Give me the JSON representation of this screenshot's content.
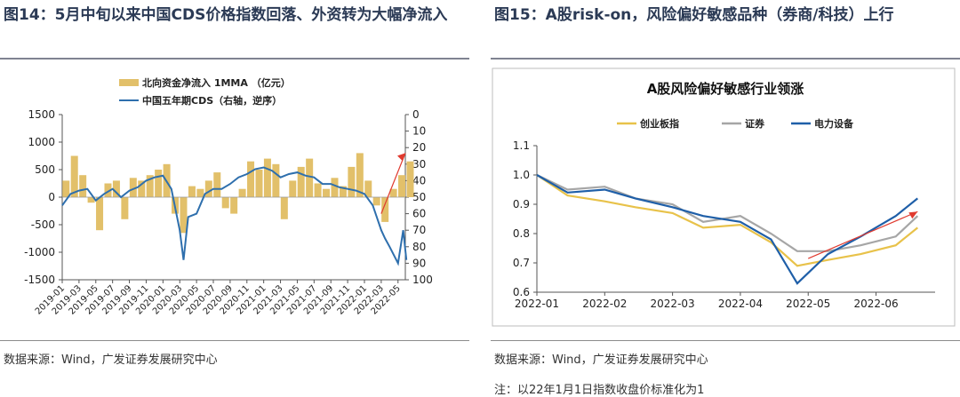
{
  "left": {
    "figure_title": "图14：5月中旬以来中国CDS价格指数回落、外资转为大幅净流入",
    "source": "数据来源：Wind，广发证券发展研究中心"
  },
  "right": {
    "figure_title": "图15：A股risk-on，风险偏好敏感品种（券商/科技）上行",
    "source": "数据来源：Wind，广发证券发展研究中心",
    "note": "注：以22年1月1日指数收盘价标准化为1"
  },
  "chart_data": [
    {
      "type": "bar",
      "legend": "top-center",
      "xlim": [
        "2019-01",
        "2022-05"
      ],
      "x_tick_labels": [
        "2019-01",
        "2019-03",
        "2019-05",
        "2019-07",
        "2019-09",
        "2019-11",
        "2020-01",
        "2020-03",
        "2020-05",
        "2020-07",
        "2020-09",
        "2020-11",
        "2021-01",
        "2021-03",
        "2021-05",
        "2021-07",
        "2021-09",
        "2021-11",
        "2022-01",
        "2022-03",
        "2022-05"
      ],
      "ylim": [
        -1500,
        1500
      ],
      "y_ticks": [
        1500,
        1000,
        500,
        0,
        -500,
        -1000,
        -1500
      ],
      "y2lim": [
        0,
        100
      ],
      "y2_inverted": true,
      "y2_ticks": [
        0,
        10,
        20,
        30,
        40,
        50,
        60,
        70,
        80,
        90,
        100
      ],
      "series": [
        {
          "name": "北向资金净流入 1MMA （亿元）",
          "type": "bar",
          "color": "#e2c06a",
          "axis": "left",
          "x": [
            "2019-01-15",
            "2019-02-15",
            "2019-03-15",
            "2019-04-15",
            "2019-05-15",
            "2019-06-15",
            "2019-07-15",
            "2019-08-15",
            "2019-09-15",
            "2019-10-15",
            "2019-11-15",
            "2019-12-15",
            "2020-01-15",
            "2020-02-15",
            "2020-03-15",
            "2020-04-15",
            "2020-05-15",
            "2020-06-15",
            "2020-07-15",
            "2020-08-15",
            "2020-09-15",
            "2020-10-15",
            "2020-11-15",
            "2020-12-15",
            "2021-01-15",
            "2021-02-15",
            "2021-03-15",
            "2021-04-15",
            "2021-05-15",
            "2021-06-15",
            "2021-07-15",
            "2021-08-15",
            "2021-09-15",
            "2021-10-15",
            "2021-11-15",
            "2021-12-15",
            "2022-01-15",
            "2022-02-15",
            "2022-03-15",
            "2022-04-15",
            "2022-05-15",
            "2022-06-15"
          ],
          "values": [
            300,
            750,
            400,
            -100,
            -600,
            250,
            300,
            -400,
            350,
            300,
            400,
            500,
            600,
            -300,
            -650,
            200,
            150,
            300,
            450,
            -200,
            -300,
            150,
            650,
            500,
            700,
            600,
            -400,
            300,
            550,
            700,
            250,
            150,
            350,
            200,
            550,
            800,
            300,
            -150,
            -450,
            150,
            400,
            650
          ]
        },
        {
          "name": "中国五年期CDS（右轴，逆序）",
          "type": "line",
          "color": "#2e6fad",
          "axis": "right",
          "x": [
            "2019-01-01",
            "2019-02-01",
            "2019-03-01",
            "2019-04-01",
            "2019-05-01",
            "2019-06-01",
            "2019-07-01",
            "2019-08-01",
            "2019-09-01",
            "2019-10-01",
            "2019-11-01",
            "2019-12-01",
            "2020-01-01",
            "2020-02-01",
            "2020-03-01",
            "2020-03-15",
            "2020-04-01",
            "2020-05-01",
            "2020-06-01",
            "2020-07-01",
            "2020-08-01",
            "2020-09-01",
            "2020-10-01",
            "2020-11-01",
            "2020-12-01",
            "2021-01-01",
            "2021-02-01",
            "2021-03-01",
            "2021-04-01",
            "2021-05-01",
            "2021-06-01",
            "2021-07-01",
            "2021-08-01",
            "2021-09-01",
            "2021-10-01",
            "2021-11-01",
            "2021-12-01",
            "2022-01-01",
            "2022-02-01",
            "2022-03-01",
            "2022-03-15",
            "2022-04-01",
            "2022-05-01",
            "2022-05-20",
            "2022-06-01"
          ],
          "values": [
            55,
            48,
            46,
            45,
            52,
            48,
            45,
            50,
            46,
            44,
            40,
            38,
            37,
            45,
            70,
            88,
            62,
            60,
            48,
            45,
            45,
            42,
            38,
            36,
            33,
            32,
            34,
            38,
            36,
            35,
            37,
            38,
            42,
            42,
            44,
            45,
            46,
            48,
            55,
            70,
            75,
            80,
            90,
            70,
            88
          ]
        }
      ]
    },
    {
      "type": "line",
      "title": "A股风险偏好敏感行业领涨",
      "legend": "top-center",
      "xlim": [
        "2022-01",
        "2022-06"
      ],
      "x_tick_labels": [
        "2022-01",
        "2022-02",
        "2022-03",
        "2022-04",
        "2022-05",
        "2022-06"
      ],
      "ylim": [
        0.6,
        1.1
      ],
      "y_ticks": [
        1.1,
        1.0,
        0.9,
        0.8,
        0.7,
        0.6
      ],
      "series": [
        {
          "name": "创业板指",
          "color": "#e8c24a",
          "x": [
            "2022-01-01",
            "2022-01-15",
            "2022-02-01",
            "2022-02-15",
            "2022-03-01",
            "2022-03-15",
            "2022-04-01",
            "2022-04-15",
            "2022-04-27",
            "2022-05-10",
            "2022-05-25",
            "2022-06-10",
            "2022-06-20"
          ],
          "values": [
            1.0,
            0.93,
            0.91,
            0.89,
            0.87,
            0.82,
            0.83,
            0.77,
            0.69,
            0.71,
            0.73,
            0.76,
            0.82
          ]
        },
        {
          "name": "证券",
          "color": "#a6a6a6",
          "x": [
            "2022-01-01",
            "2022-01-15",
            "2022-02-01",
            "2022-02-15",
            "2022-03-01",
            "2022-03-15",
            "2022-04-01",
            "2022-04-15",
            "2022-04-27",
            "2022-05-10",
            "2022-05-25",
            "2022-06-10",
            "2022-06-20"
          ],
          "values": [
            1.0,
            0.95,
            0.96,
            0.92,
            0.9,
            0.84,
            0.86,
            0.8,
            0.74,
            0.74,
            0.76,
            0.79,
            0.86
          ]
        },
        {
          "name": "电力设备",
          "color": "#1f5fa8",
          "x": [
            "2022-01-01",
            "2022-01-15",
            "2022-02-01",
            "2022-02-15",
            "2022-03-01",
            "2022-03-15",
            "2022-04-01",
            "2022-04-15",
            "2022-04-27",
            "2022-05-10",
            "2022-05-25",
            "2022-06-10",
            "2022-06-20"
          ],
          "values": [
            1.0,
            0.94,
            0.95,
            0.92,
            0.89,
            0.86,
            0.84,
            0.78,
            0.63,
            0.73,
            0.79,
            0.86,
            0.92
          ]
        }
      ]
    }
  ]
}
